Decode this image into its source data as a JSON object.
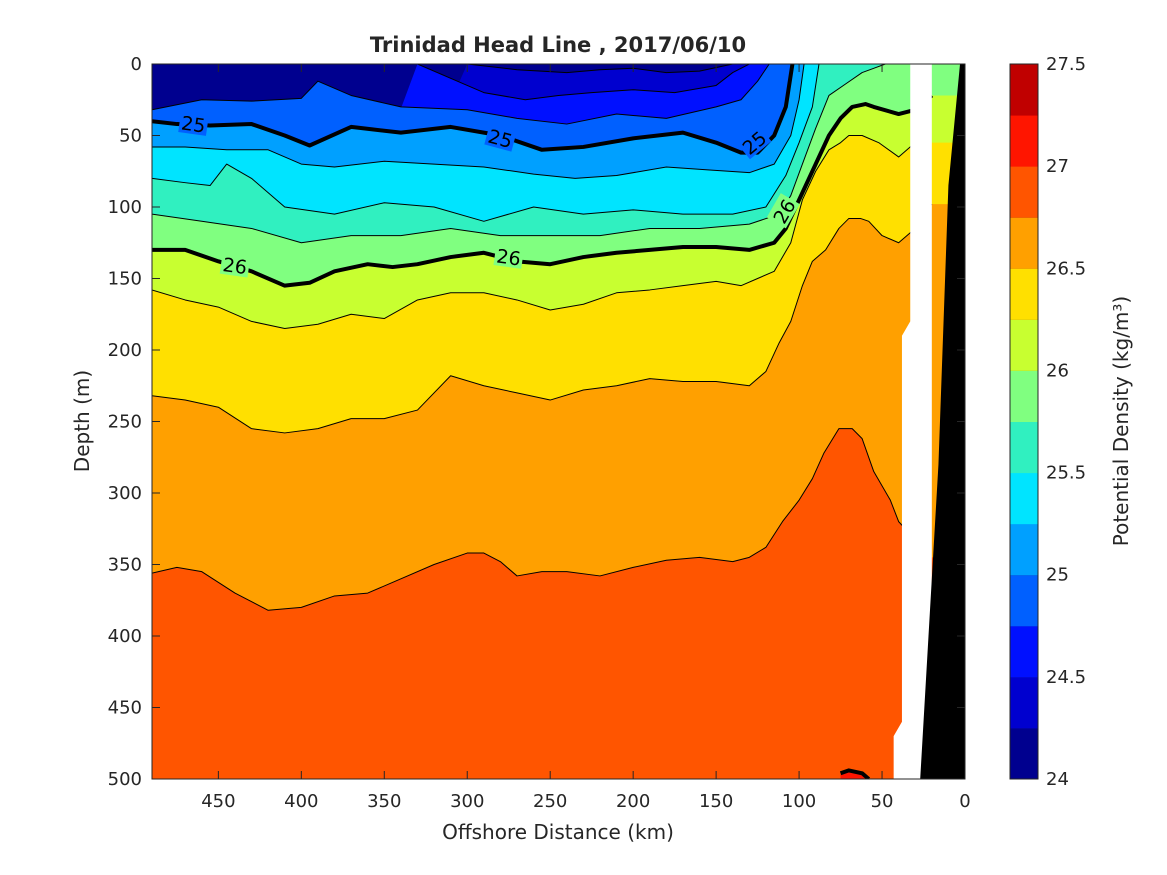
{
  "chart_data": {
    "type": "contour",
    "title": "Trinidad Head Line , 2017/06/10",
    "xlabel": "Offshore Distance (km)",
    "ylabel": "Depth (m)",
    "colorbar_label": "Potential Density (kg/m³)",
    "xlim": [
      490,
      0
    ],
    "ylim": [
      0,
      500
    ],
    "x_reversed": true,
    "y_reversed": true,
    "xticks": [
      450,
      400,
      350,
      300,
      250,
      200,
      150,
      100,
      50,
      0
    ],
    "yticks": [
      0,
      50,
      100,
      150,
      200,
      250,
      300,
      350,
      400,
      450,
      500
    ],
    "colorbar_ticks": [
      24,
      24.5,
      25,
      25.5,
      26,
      26.5,
      27,
      27.5
    ],
    "levels": [
      24,
      24.25,
      24.5,
      24.75,
      25,
      25.25,
      25.5,
      25.75,
      26,
      26.25,
      26.5,
      26.75,
      27,
      27.25,
      27.5
    ],
    "colors": [
      "#00008f",
      "#0000cf",
      "#0010ff",
      "#0060ff",
      "#00a0ff",
      "#00e4ff",
      "#30f0c0",
      "#80ff80",
      "#c8ff30",
      "#ffe000",
      "#ffa000",
      "#ff5500",
      "#ff1500",
      "#c00000"
    ],
    "bold_contours": [
      25,
      26
    ],
    "contour_labels": [
      {
        "text": "25",
        "x": 465,
        "y": 42
      },
      {
        "text": "25",
        "x": 280,
        "y": 52
      },
      {
        "text": "25",
        "x": 127,
        "y": 55
      },
      {
        "text": "26",
        "x": 440,
        "y": 141
      },
      {
        "text": "26",
        "x": 275,
        "y": 135
      },
      {
        "text": "26",
        "x": 109,
        "y": 103
      }
    ],
    "isolines": [
      {
        "level": 24.25,
        "x": [
          300,
          270,
          240,
          220,
          200,
          180,
          160,
          140
        ],
        "y": [
          0,
          4,
          6,
          4,
          3,
          6,
          5,
          0
        ]
      },
      {
        "level": 24.5,
        "x": [
          330,
          310,
          290,
          265,
          245,
          225,
          200,
          175,
          150,
          140,
          130
        ],
        "y": [
          0,
          10,
          20,
          25,
          22,
          20,
          18,
          20,
          15,
          6,
          0
        ]
      },
      {
        "level": 24.75,
        "x": [
          490,
          460,
          430,
          400,
          390,
          370,
          340,
          300,
          270,
          240,
          210,
          180,
          150,
          135,
          125,
          118
        ],
        "y": [
          32,
          25,
          26,
          24,
          12,
          22,
          30,
          32,
          38,
          42,
          35,
          38,
          30,
          25,
          12,
          0
        ]
      },
      {
        "level": 25,
        "x": [
          490,
          475,
          455,
          430,
          410,
          395,
          370,
          340,
          310,
          280,
          255,
          230,
          200,
          170,
          150,
          135,
          125,
          115,
          108,
          104
        ],
        "y": [
          40,
          42,
          43,
          42,
          50,
          57,
          44,
          48,
          44,
          50,
          60,
          58,
          52,
          48,
          55,
          62,
          62,
          50,
          30,
          0
        ]
      },
      {
        "level": 25.25,
        "x": [
          490,
          470,
          445,
          420,
          400,
          380,
          350,
          320,
          290,
          260,
          235,
          210,
          180,
          155,
          130,
          115,
          105,
          100,
          97
        ],
        "y": [
          58,
          58,
          60,
          60,
          70,
          72,
          68,
          70,
          72,
          77,
          80,
          78,
          72,
          74,
          76,
          70,
          50,
          25,
          0
        ]
      },
      {
        "level": 25.5,
        "x": [
          490,
          470,
          455,
          445,
          430,
          410,
          380,
          350,
          320,
          290,
          260,
          230,
          200,
          170,
          140,
          120,
          108,
          100,
          92,
          88
        ],
        "y": [
          80,
          83,
          85,
          70,
          80,
          100,
          105,
          97,
          100,
          110,
          100,
          105,
          102,
          105,
          105,
          100,
          78,
          55,
          30,
          0
        ]
      },
      {
        "level": 25.75,
        "x": [
          490,
          460,
          430,
          400,
          370,
          340,
          310,
          280,
          250,
          220,
          190,
          160,
          130,
          112,
          105,
          98,
          90,
          82,
          72,
          62,
          55,
          48
        ],
        "y": [
          105,
          110,
          115,
          125,
          120,
          120,
          115,
          120,
          120,
          120,
          115,
          115,
          112,
          105,
          92,
          70,
          45,
          22,
          14,
          6,
          3,
          0
        ]
      },
      {
        "level": 26,
        "x": [
          490,
          470,
          450,
          430,
          410,
          395,
          380,
          360,
          345,
          330,
          310,
          290,
          270,
          250,
          230,
          210,
          190,
          170,
          150,
          130,
          115,
          108,
          100,
          90,
          82,
          75,
          68,
          60,
          55,
          40,
          30,
          20
        ],
        "y": [
          130,
          130,
          138,
          145,
          155,
          153,
          145,
          140,
          142,
          140,
          135,
          132,
          138,
          140,
          135,
          132,
          130,
          128,
          128,
          130,
          125,
          115,
          95,
          70,
          50,
          38,
          30,
          28,
          30,
          35,
          32,
          22
        ]
      },
      {
        "level": 26.25,
        "x": [
          490,
          470,
          450,
          430,
          410,
          390,
          370,
          350,
          330,
          310,
          290,
          270,
          250,
          230,
          210,
          190,
          170,
          150,
          135,
          125,
          115,
          105,
          98,
          90,
          82,
          75,
          70,
          62,
          52,
          40,
          30
        ],
        "y": [
          158,
          165,
          170,
          180,
          185,
          182,
          175,
          178,
          165,
          160,
          160,
          165,
          172,
          168,
          160,
          158,
          155,
          152,
          155,
          150,
          145,
          125,
          95,
          75,
          60,
          55,
          50,
          50,
          55,
          65,
          55
        ]
      },
      {
        "level": 26.5,
        "x": [
          490,
          470,
          450,
          430,
          410,
          390,
          370,
          350,
          330,
          310,
          290,
          270,
          250,
          230,
          210,
          190,
          170,
          150,
          130,
          120,
          112,
          105,
          98,
          92,
          84,
          76,
          70,
          63,
          58,
          50,
          40,
          30,
          20
        ],
        "y": [
          232,
          235,
          240,
          255,
          258,
          255,
          248,
          248,
          242,
          218,
          225,
          230,
          235,
          228,
          225,
          220,
          222,
          222,
          225,
          215,
          195,
          180,
          155,
          138,
          130,
          115,
          108,
          108,
          110,
          120,
          125,
          115,
          98
        ]
      },
      {
        "level": 26.75,
        "x": [
          490,
          475,
          460,
          440,
          420,
          400,
          380,
          360,
          340,
          320,
          300,
          290,
          280,
          270,
          255,
          240,
          220,
          200,
          180,
          160,
          140,
          130,
          120,
          110,
          100,
          92,
          85,
          76,
          68,
          62,
          55,
          45,
          40,
          32,
          30
        ],
        "y": [
          356,
          352,
          355,
          370,
          382,
          380,
          372,
          370,
          360,
          350,
          342,
          342,
          348,
          358,
          355,
          355,
          358,
          352,
          347,
          345,
          348,
          345,
          338,
          320,
          305,
          290,
          272,
          255,
          255,
          262,
          285,
          305,
          320,
          330,
          345
        ]
      },
      {
        "level": 27,
        "x": [
          75,
          70,
          62,
          58
        ],
        "y": [
          496,
          494,
          496,
          500
        ]
      }
    ],
    "shelf_profile": {
      "x": [
        20,
        24,
        27,
        30,
        33
      ],
      "y": [
        0,
        90,
        180,
        300,
        500
      ]
    }
  }
}
